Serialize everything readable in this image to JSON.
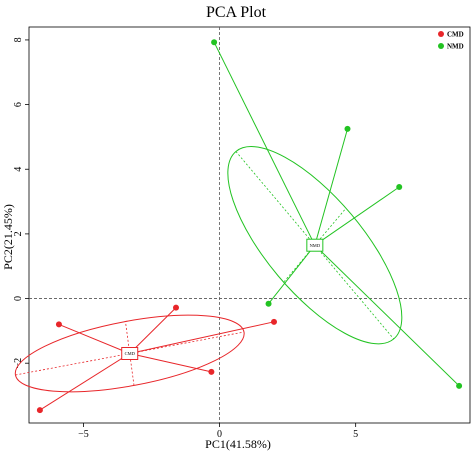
{
  "chart_data": {
    "type": "scatter",
    "title": "PCA Plot",
    "xlabel": "PC1(41.58%)",
    "ylabel": "PC2(21.45%)",
    "xlim": [
      -7.0,
      9.2
    ],
    "ylim": [
      -3.85,
      8.4
    ],
    "xticks": [
      -5,
      0,
      5
    ],
    "yticks": [
      -2,
      0,
      2,
      4,
      6,
      8
    ],
    "grid": false,
    "reference_lines": {
      "x": 0,
      "y": 0
    },
    "legend_position": "top-right",
    "series": [
      {
        "name": "CMD",
        "color": "#e8262a",
        "points": [
          {
            "x": -6.6,
            "y": -3.45
          },
          {
            "x": -5.9,
            "y": -0.8
          },
          {
            "x": -1.6,
            "y": -0.28
          },
          {
            "x": -0.3,
            "y": -2.27
          },
          {
            "x": 2.0,
            "y": -0.72
          }
        ],
        "centroid": {
          "x": -3.3,
          "y": -1.7,
          "label": "CMD"
        },
        "ellipse": {
          "angle_deg": 9,
          "semi_major": 4.25,
          "semi_minor": 1.0
        }
      },
      {
        "name": "NMD",
        "color": "#22c322",
        "points": [
          {
            "x": -0.2,
            "y": 7.93
          },
          {
            "x": 4.7,
            "y": 5.25
          },
          {
            "x": 6.6,
            "y": 3.45
          },
          {
            "x": 1.8,
            "y": -0.16
          },
          {
            "x": 8.8,
            "y": -2.7
          }
        ],
        "centroid": {
          "x": 3.5,
          "y": 1.65,
          "label": "NMD"
        },
        "ellipse": {
          "angle_deg": -45,
          "semi_major": 4.1,
          "semi_minor": 1.6
        }
      }
    ]
  }
}
